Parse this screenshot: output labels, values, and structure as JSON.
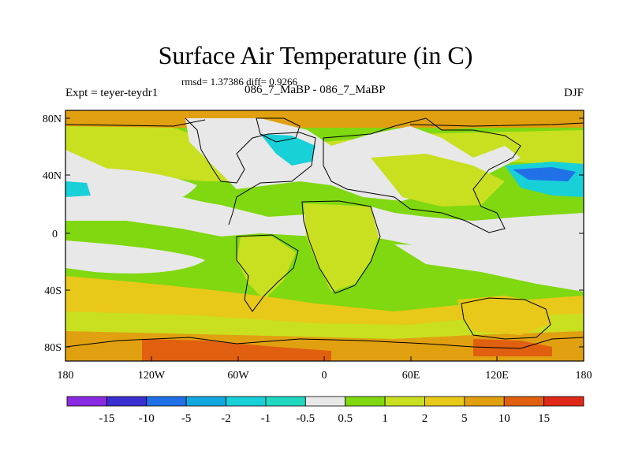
{
  "title": "Surface Air Temperature (in C)",
  "stats": "rmsd= 1.37386 diff= 0.9266",
  "experiment": "Expt = teyer-teydr1",
  "subtitle": "086_7_MaBP - 086_7_MaBP",
  "season": "DJF",
  "axes": {
    "lat_ticks": [
      "80N",
      "40N",
      "0",
      "40S",
      "80S"
    ],
    "lon_ticks": [
      "180",
      "120W",
      "60W",
      "0",
      "60E",
      "120E",
      "180"
    ]
  },
  "colorbar": {
    "labels": [
      "-15",
      "-10",
      "-5",
      "-2",
      "-1",
      "-0.5",
      "0.5",
      "1",
      "2",
      "5",
      "10",
      "15"
    ],
    "colors": [
      "#8a2be2",
      "#3a2fd0",
      "#2070e8",
      "#10a8e0",
      "#18d0d8",
      "#20d8c0",
      "#e8e8e8",
      "#80d810",
      "#c8e020",
      "#e8c818",
      "#e0a010",
      "#e06010",
      "#e02818"
    ]
  },
  "legend_colors": {
    "white": "#e8e8e8",
    "green": "#80d810",
    "yellowgreen": "#c8e020",
    "gold": "#e8c818",
    "orange": "#e0a010",
    "darkorange": "#e06010",
    "cyan": "#18d0d8"
  }
}
